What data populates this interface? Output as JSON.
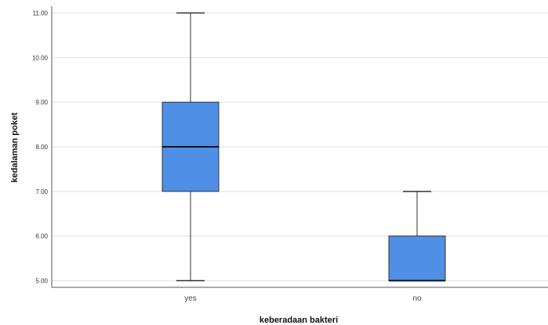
{
  "chart_data": {
    "type": "boxplot",
    "xlabel": "keberadaan bakteri",
    "ylabel": "kedalaman poket",
    "ylim": [
      4.85,
      11.15
    ],
    "yticks": [
      5,
      6,
      7,
      8,
      9,
      10,
      11
    ],
    "ytick_labels": [
      "5.00",
      "6.00",
      "7.00",
      "8.00",
      "9.00",
      "10.00",
      "11.00"
    ],
    "grid": true,
    "legend": "none",
    "categories": [
      "yes",
      "no"
    ],
    "boxes": [
      {
        "category": "yes",
        "min": 5,
        "q1": 7,
        "median": 8,
        "q3": 9,
        "max": 11
      },
      {
        "category": "no",
        "min": 5,
        "q1": 5,
        "median": 5,
        "q3": 6,
        "max": 7
      }
    ],
    "colors": {
      "box_fill": "#4f8fe6",
      "box_stroke": "#333333",
      "median": "#111111",
      "grid": "#e4e4e4",
      "axis": "#555555"
    }
  }
}
